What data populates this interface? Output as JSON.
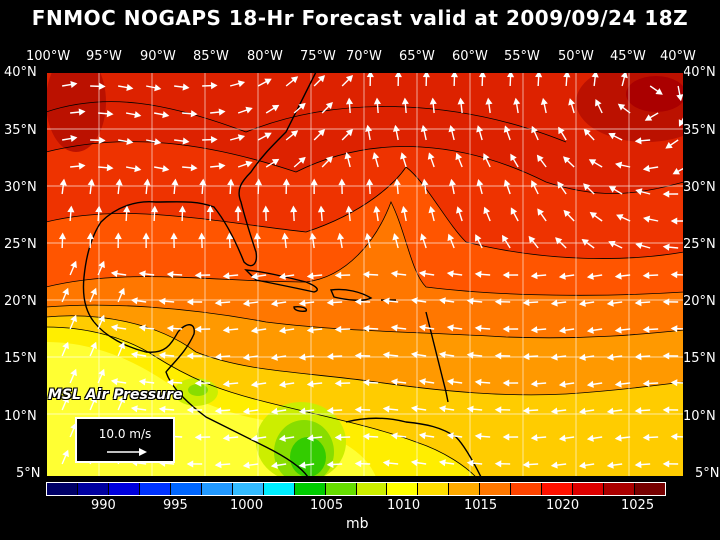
{
  "title": "FNMOC NOGAPS 18-Hr Forecast valid at 2009/09/24 18Z",
  "lon_labels": [
    "100°W",
    "95°W",
    "90°W",
    "85°W",
    "80°W",
    "75°W",
    "70°W",
    "65°W",
    "60°W",
    "55°W",
    "50°W",
    "45°W",
    "40°W"
  ],
  "lat_labels": [
    "40°N",
    "35°N",
    "30°N",
    "25°N",
    "20°N",
    "15°N",
    "10°N",
    "5°N"
  ],
  "field_label": "MSL Air Pressure",
  "wind_reference": "10.0 m/s",
  "colorbar": {
    "ticks": [
      "990",
      "995",
      "1000",
      "1005",
      "1010",
      "1015",
      "1020",
      "1025"
    ],
    "unit": "mb",
    "colors": [
      "#000066",
      "#0000a0",
      "#0000dd",
      "#0033ff",
      "#0066ff",
      "#2299ff",
      "#33bbff",
      "#00eeff",
      "#00cc00",
      "#66dd00",
      "#ccee00",
      "#ffff00",
      "#ffdd00",
      "#ffaa00",
      "#ff7700",
      "#ff4400",
      "#ff1100",
      "#dd0000",
      "#aa0000",
      "#770000"
    ]
  },
  "colors": {
    "background": "#000000",
    "text": "#ffffff",
    "grid": "#ffffff",
    "coast": "#000000"
  }
}
